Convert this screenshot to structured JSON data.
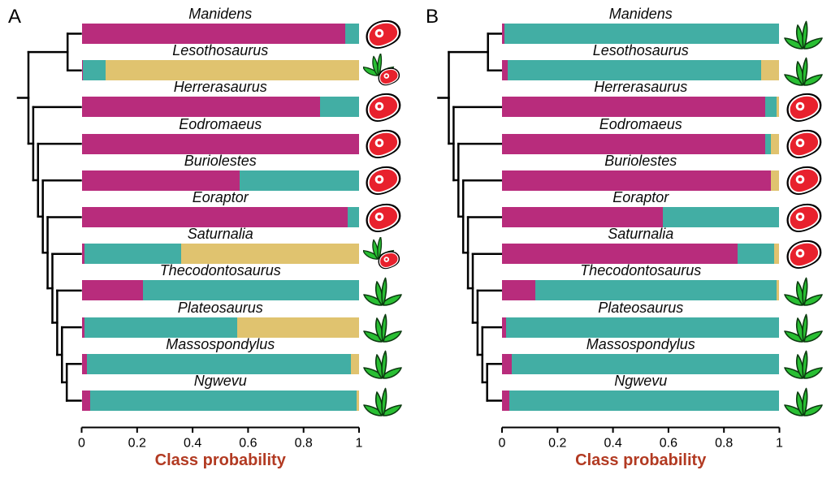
{
  "figure": {
    "xlabel_color": "#b23a22",
    "tree_color": "#000000",
    "meat_red": "#e8212d",
    "plant_green": "#29bf33"
  },
  "chart_data": {
    "type": "bar",
    "stacked": true,
    "orientation": "horizontal",
    "xlabel": "Class probability",
    "xlim": [
      0,
      1
    ],
    "x_ticks": [
      0,
      0.2,
      0.4,
      0.6,
      0.8,
      1
    ],
    "axis_tick_labels": [
      "0",
      "0.2",
      "0.4",
      "0.6",
      "0.8",
      "1"
    ],
    "grid": false,
    "legend": "none",
    "classes": [
      "carnivory",
      "herbivory",
      "omnivory"
    ],
    "class_colors": {
      "carnivory": "#b82c7c",
      "herbivory": "#42aea4",
      "omnivory": "#e0c36f"
    },
    "tree_newick": "((Manidens,Lesothosaurus),(Herrerasaurus,(Eodromaeus,(Buriolestes,(Eoraptor,(Saturnalia,(Thecodontosaurus,(Plateosaurus,(Massospondylus,Ngwevu)))))))));",
    "panels": [
      {
        "label": "A",
        "taxa": [
          {
            "name": "Manidens",
            "values": [
              0.95,
              0.05,
              0.0
            ],
            "diet_icon": "meat"
          },
          {
            "name": "Lesothosaurus",
            "values": [
              0.005,
              0.08,
              0.915
            ],
            "diet_icon": "plant_meat"
          },
          {
            "name": "Herrerasaurus",
            "values": [
              0.86,
              0.14,
              0.0
            ],
            "diet_icon": "meat"
          },
          {
            "name": "Eodromaeus",
            "values": [
              1.0,
              0.0,
              0.0
            ],
            "diet_icon": "meat"
          },
          {
            "name": "Buriolestes",
            "values": [
              0.57,
              0.43,
              0.0
            ],
            "diet_icon": "meat"
          },
          {
            "name": "Eoraptor",
            "values": [
              0.96,
              0.04,
              0.0
            ],
            "diet_icon": "meat"
          },
          {
            "name": "Saturnalia",
            "values": [
              0.01,
              0.35,
              0.64
            ],
            "diet_icon": "plant_meat"
          },
          {
            "name": "Thecodontosaurus",
            "values": [
              0.22,
              0.78,
              0.0
            ],
            "diet_icon": "plant"
          },
          {
            "name": "Plateosaurus",
            "values": [
              0.01,
              0.55,
              0.44
            ],
            "diet_icon": "plant"
          },
          {
            "name": "Massospondylus",
            "values": [
              0.02,
              0.95,
              0.03
            ],
            "diet_icon": "plant"
          },
          {
            "name": "Ngwevu",
            "values": [
              0.03,
              0.96,
              0.01
            ],
            "diet_icon": "plant"
          }
        ]
      },
      {
        "label": "B",
        "taxa": [
          {
            "name": "Manidens",
            "values": [
              0.01,
              0.99,
              0.0
            ],
            "diet_icon": "plant"
          },
          {
            "name": "Lesothosaurus",
            "values": [
              0.02,
              0.915,
              0.065
            ],
            "diet_icon": "plant"
          },
          {
            "name": "Herrerasaurus",
            "values": [
              0.95,
              0.04,
              0.01
            ],
            "diet_icon": "meat"
          },
          {
            "name": "Eodromaeus",
            "values": [
              0.95,
              0.02,
              0.03
            ],
            "diet_icon": "meat"
          },
          {
            "name": "Buriolestes",
            "values": [
              0.97,
              0.0,
              0.03
            ],
            "diet_icon": "meat"
          },
          {
            "name": "Eoraptor",
            "values": [
              0.58,
              0.42,
              0.0
            ],
            "diet_icon": "meat"
          },
          {
            "name": "Saturnalia",
            "values": [
              0.85,
              0.13,
              0.02
            ],
            "diet_icon": "meat"
          },
          {
            "name": "Thecodontosaurus",
            "values": [
              0.12,
              0.87,
              0.01
            ],
            "diet_icon": "plant"
          },
          {
            "name": "Plateosaurus",
            "values": [
              0.015,
              0.985,
              0.0
            ],
            "diet_icon": "plant"
          },
          {
            "name": "Massospondylus",
            "values": [
              0.035,
              0.965,
              0.0
            ],
            "diet_icon": "plant"
          },
          {
            "name": "Ngwevu",
            "values": [
              0.025,
              0.975,
              0.0
            ],
            "diet_icon": "plant"
          }
        ]
      }
    ]
  }
}
